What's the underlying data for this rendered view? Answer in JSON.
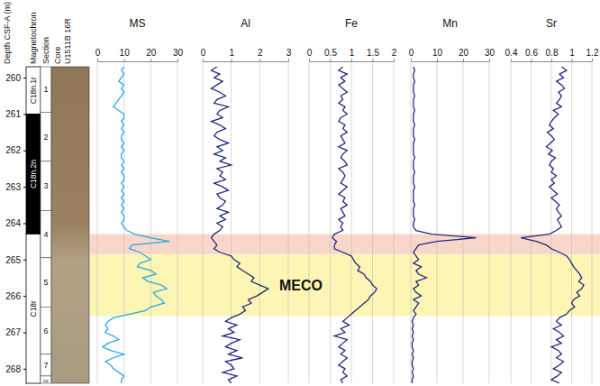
{
  "chart_data": {
    "type": "well-log",
    "ylabel": "Depth CSF-A (m)",
    "ylim": [
      259.7,
      268.4
    ],
    "yticks": [
      260,
      261,
      262,
      263,
      264,
      265,
      266,
      267,
      268
    ],
    "magnetochron_label": "Magnetochron",
    "magnetochrons": [
      {
        "name": "C18n.1r",
        "top": 259.7,
        "bottom": 261.0,
        "color": "#ffffff"
      },
      {
        "name": "C18n.2n",
        "top": 261.0,
        "bottom": 264.3,
        "color": "#000000"
      },
      {
        "name": "C18r",
        "top": 264.3,
        "bottom": 268.4,
        "color": "#ffffff"
      }
    ],
    "section_label": "Section",
    "sections": [
      {
        "label": "1",
        "top": 259.7,
        "bottom": 260.95
      },
      {
        "label": "2",
        "top": 260.95,
        "bottom": 262.3
      },
      {
        "label": "3",
        "top": 262.3,
        "bottom": 263.65
      },
      {
        "label": "4",
        "top": 263.65,
        "bottom": 264.95
      },
      {
        "label": "5",
        "top": 264.95,
        "bottom": 266.3
      },
      {
        "label": "6",
        "top": 266.3,
        "bottom": 267.6
      },
      {
        "label": "7",
        "top": 267.6,
        "bottom": 268.2
      },
      {
        "label": "cc",
        "top": 268.2,
        "bottom": 268.4
      }
    ],
    "core_label": [
      "Core",
      "U1511B 16R"
    ],
    "bands": [
      {
        "top": 264.3,
        "bottom": 264.85,
        "color": "#f9d6ca"
      },
      {
        "top": 264.85,
        "bottom": 266.55,
        "color": "#fdf5b4",
        "label": "MECO"
      }
    ],
    "depth": [
      259.7,
      259.8,
      259.9,
      260,
      260.1,
      260.2,
      260.3,
      260.4,
      260.5,
      260.6,
      260.7,
      260.8,
      260.9,
      261,
      261.1,
      261.2,
      261.3,
      261.4,
      261.5,
      261.6,
      261.7,
      261.8,
      261.9,
      262,
      262.1,
      262.2,
      262.3,
      262.4,
      262.5,
      262.6,
      262.7,
      262.8,
      262.9,
      263,
      263.1,
      263.2,
      263.3,
      263.4,
      263.5,
      263.6,
      263.7,
      263.8,
      263.9,
      264,
      264.1,
      264.2,
      264.3,
      264.4,
      264.5,
      264.6,
      264.7,
      264.8,
      264.9,
      265,
      265.1,
      265.2,
      265.3,
      265.4,
      265.5,
      265.6,
      265.7,
      265.8,
      265.9,
      266,
      266.1,
      266.2,
      266.3,
      266.4,
      266.5,
      266.6,
      266.7,
      266.8,
      266.9,
      267,
      267.1,
      267.2,
      267.3,
      267.4,
      267.5,
      267.6,
      267.7,
      267.8,
      267.9,
      268,
      268.1,
      268.2,
      268.3,
      268.4
    ],
    "tracks": [
      {
        "name": "MS",
        "color": "#29abe2",
        "xlim": [
          0,
          30
        ],
        "xticks": [
          0,
          10,
          20,
          30
        ],
        "values": [
          10,
          9,
          10,
          9,
          8,
          10,
          9,
          10,
          9,
          8,
          7,
          6,
          8,
          10,
          10,
          9,
          10,
          9,
          10,
          9,
          9,
          10,
          9,
          10,
          9,
          9,
          10,
          9,
          10,
          9,
          10,
          10,
          9,
          10,
          9,
          10,
          9,
          10,
          9,
          10,
          9,
          10,
          10,
          9,
          10,
          11,
          14,
          20,
          27,
          13,
          12,
          16,
          18,
          20,
          16,
          15,
          20,
          22,
          17,
          19,
          24,
          26,
          21,
          22,
          24,
          25,
          20,
          18,
          12,
          6,
          4,
          3,
          4,
          3,
          6,
          8,
          4,
          2,
          5,
          10,
          6,
          3,
          5,
          6,
          8,
          10,
          9,
          9
        ]
      },
      {
        "name": "Al",
        "color": "#232a7e",
        "xlim": [
          0,
          3
        ],
        "xticks": [
          0,
          1,
          2,
          3
        ],
        "values": [
          0.5,
          0.3,
          0.6,
          0.4,
          0.7,
          0.5,
          0.3,
          0.6,
          0.8,
          0.5,
          0.4,
          0.9,
          0.6,
          0.5,
          0.7,
          0.3,
          0.6,
          0.8,
          0.5,
          0.4,
          0.6,
          0.9,
          0.5,
          0.7,
          0.4,
          0.8,
          0.6,
          1.0,
          0.5,
          0.7,
          0.6,
          0.8,
          0.4,
          0.7,
          0.9,
          0.5,
          0.6,
          0.8,
          0.7,
          0.5,
          0.9,
          0.6,
          0.8,
          0.5,
          0.7,
          0.6,
          0.4,
          0.3,
          0.4,
          0.5,
          0.4,
          0.6,
          1.0,
          1.1,
          1.3,
          1.2,
          1.4,
          1.6,
          1.8,
          1.7,
          2.0,
          2.3,
          2.1,
          1.9,
          1.6,
          1.7,
          1.4,
          1.5,
          1.3,
          1.0,
          0.8,
          1.2,
          0.9,
          1.1,
          0.7,
          1.3,
          1.0,
          0.8,
          1.2,
          0.9,
          1.4,
          0.8,
          1.0,
          1.1,
          0.7,
          1.2,
          0.9,
          1.0
        ]
      },
      {
        "name": "Fe",
        "color": "#232a7e",
        "xlim": [
          0,
          2
        ],
        "xticks": [
          0,
          0.5,
          1,
          1.5,
          2
        ],
        "values": [
          0.8,
          0.7,
          0.9,
          0.75,
          0.85,
          0.7,
          0.8,
          0.9,
          0.75,
          0.8,
          0.7,
          0.85,
          0.8,
          0.9,
          0.75,
          0.7,
          0.85,
          0.8,
          0.9,
          0.75,
          0.8,
          0.85,
          0.7,
          0.9,
          0.8,
          0.75,
          0.85,
          0.9,
          0.7,
          0.8,
          0.85,
          0.8,
          0.75,
          0.9,
          0.8,
          0.7,
          0.85,
          0.8,
          0.9,
          0.75,
          0.8,
          0.85,
          0.7,
          0.8,
          0.75,
          0.8,
          0.6,
          0.55,
          0.65,
          0.6,
          0.6,
          0.8,
          1.0,
          1.05,
          1.1,
          1.2,
          1.15,
          1.3,
          1.35,
          1.45,
          1.5,
          1.6,
          1.55,
          1.45,
          1.4,
          1.3,
          1.2,
          1.1,
          1.0,
          0.9,
          0.8,
          0.95,
          0.75,
          0.85,
          0.6,
          0.9,
          0.8,
          0.7,
          0.85,
          0.75,
          0.9,
          0.8,
          0.7,
          0.85,
          0.8,
          0.9,
          0.75,
          0.8
        ]
      },
      {
        "name": "Mn",
        "color": "#232a7e",
        "xlim": [
          0,
          30
        ],
        "xticks": [
          0,
          10,
          20,
          30
        ],
        "values": [
          1,
          1.5,
          1,
          1,
          1.5,
          1,
          1,
          1,
          1.5,
          1,
          1,
          1,
          1.5,
          1,
          1,
          1,
          1.5,
          1,
          1,
          1,
          1.5,
          1,
          1,
          1,
          1,
          1.5,
          1,
          1,
          1,
          1.5,
          1,
          1,
          1,
          1.5,
          1,
          1,
          1,
          1,
          1.5,
          1,
          1,
          1,
          1.5,
          1,
          1,
          2,
          8,
          25,
          10,
          3,
          2,
          1,
          2,
          3,
          1,
          4,
          2,
          3,
          6,
          2,
          3,
          1,
          2,
          4,
          1,
          3,
          2,
          1,
          2,
          1,
          0.5,
          1,
          0.5,
          1,
          0.5,
          1,
          0.5,
          0.5,
          1,
          0.5,
          1,
          0.5,
          0.5,
          1,
          0.5,
          1,
          0.5,
          0.5
        ]
      },
      {
        "name": "Sr",
        "color": "#232a7e",
        "xlim": [
          0.4,
          1.2
        ],
        "xticks": [
          0.4,
          0.6,
          0.8,
          1,
          1.2
        ],
        "values": [
          0.9,
          0.95,
          0.88,
          0.92,
          0.85,
          0.9,
          0.93,
          0.87,
          0.9,
          0.88,
          0.85,
          0.9,
          0.82,
          0.87,
          0.83,
          0.8,
          0.78,
          0.82,
          0.76,
          0.8,
          0.83,
          0.79,
          0.75,
          0.81,
          0.77,
          0.84,
          0.8,
          0.78,
          0.82,
          0.8,
          0.85,
          0.8,
          0.83,
          0.78,
          0.82,
          0.86,
          0.8,
          0.84,
          0.88,
          0.85,
          0.87,
          0.9,
          0.86,
          0.88,
          0.9,
          0.85,
          0.78,
          0.5,
          0.65,
          0.75,
          0.8,
          0.88,
          0.95,
          0.98,
          1.0,
          1.02,
          1.05,
          1.08,
          1.1,
          1.07,
          1.12,
          1.1,
          1.05,
          1.08,
          1.02,
          1.0,
          1.03,
          0.98,
          0.95,
          0.88,
          0.85,
          0.9,
          0.82,
          0.88,
          0.92,
          0.85,
          0.9,
          0.8,
          0.87,
          0.9,
          0.85,
          0.92,
          0.88,
          0.82,
          0.9,
          0.86,
          0.8,
          0.88
        ]
      }
    ]
  }
}
